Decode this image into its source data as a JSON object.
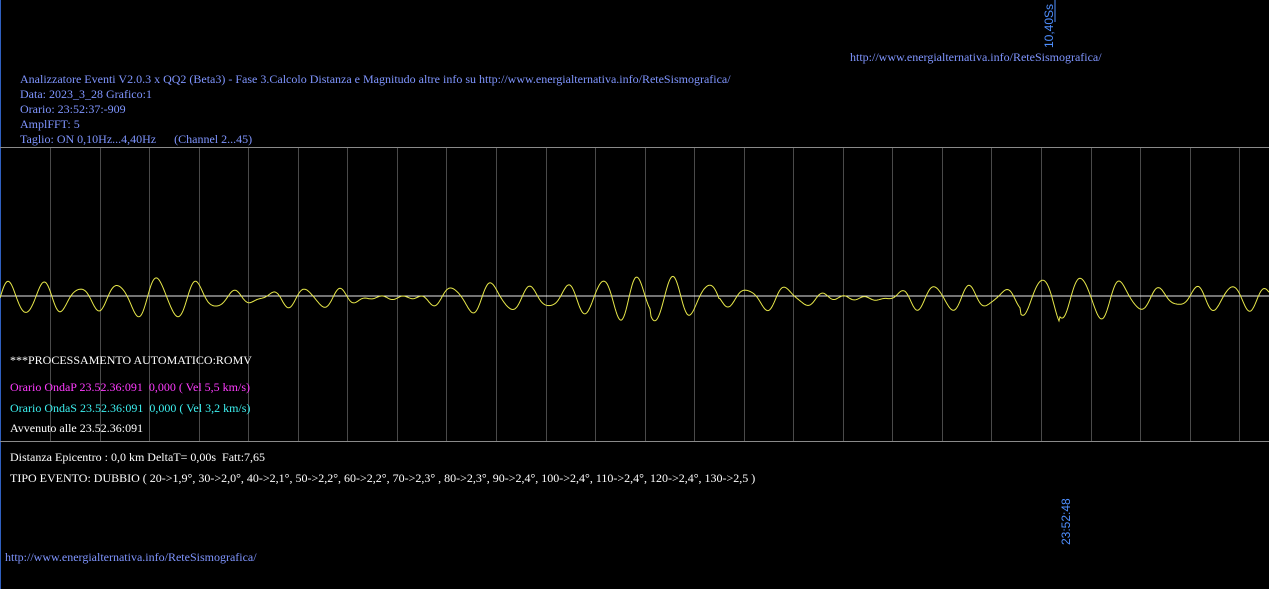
{
  "header": {
    "time_marker": "10,40Ss",
    "url": "http://www.energialternativa.info/ReteSismografica/",
    "lines": [
      "Analizzatore Eventi V2.0.3 x QQ2 (Beta3) - Fase 3.Calcolo Distanza e Magnitudo altre info su http://www.energialternativa.info/ReteSismografica/",
      "Data: 2023_3_28 Grafico:1",
      "Orario: 23:52:37:-909",
      "AmplFFT: 5",
      "Taglio: ON 0,10Hz...4,40Hz      (Channel 2...45)"
    ]
  },
  "processing": {
    "title": "***PROCESSAMENTO AUTOMATICO:ROMV",
    "wave_p": "Orario OndaP 23.52.36:091  0,000 ( Vel 5,5 km/s)",
    "wave_s": "Orario OndaS 23.52.36:091  0,000 ( Vel 3,2 km/s)",
    "occurred": "Avvenuto alle 23.52.36:091"
  },
  "result": {
    "distance": "Distanza Epicentro : 0,0 km DeltaT= 0,00s  Fatt:7,65",
    "event_type": "TIPO EVENTO: DUBBIO ( 20->1,9°, 30->2,0°, 40->2,1°, 50->2,2°, 60->2,2°, 70->2,3° , 80->2,3°, 90->2,4°, 100->2,4°, 110->2,4°, 120->2,4°, 130->2,5 )"
  },
  "footer": {
    "time_marker": "23:52:48",
    "url": "http://www.energialternativa.info/ReteSismografica/"
  }
}
